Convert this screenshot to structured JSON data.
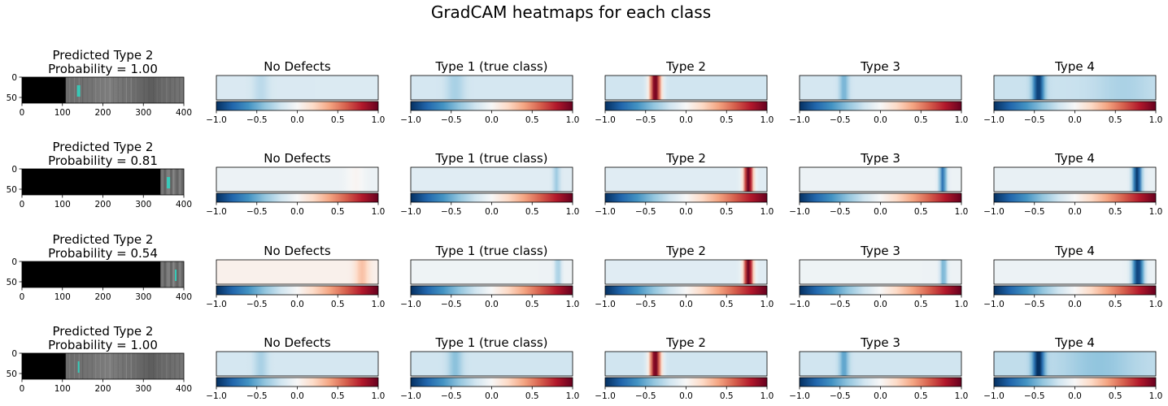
{
  "figure_title": "GradCAM heatmaps for each class",
  "colors": {
    "cmap": [
      "#053061",
      "#2166ac",
      "#4393c3",
      "#92c5de",
      "#d1e5f0",
      "#f7f7f7",
      "#fddbc7",
      "#f4a582",
      "#d6604d",
      "#b2182b",
      "#67001f"
    ],
    "background": "#ffffff",
    "text": "#000000",
    "defect_mark": "#2fd6c2"
  },
  "chart_data": {
    "type": "heatmap",
    "colormap": "RdBu_r",
    "colorbar_ticks": [
      "−1.0",
      "−0.5",
      "0.0",
      "0.5",
      "1.0"
    ],
    "image_axis": {
      "xticks": [
        "0",
        "100",
        "200",
        "300",
        "400"
      ],
      "yticks": [
        "0",
        "50"
      ],
      "xlim": [
        0,
        400
      ],
      "ylim": [
        64,
        0
      ]
    },
    "class_titles": [
      "No Defects",
      "Type 1 (true class)",
      "Type 2",
      "Type 3",
      "Type 4"
    ],
    "rows": [
      {
        "predicted": "Predicted Type 2",
        "probability": "Probability = 1.00",
        "black_until": 108,
        "marks": [
          136,
          140
        ],
        "heatmaps": [
          {
            "base": -0.15,
            "blobs": [
              [
                -0.45,
                0.08,
                -0.12
              ]
            ]
          },
          {
            "base": -0.18,
            "blobs": [
              [
                -0.45,
                0.08,
                -0.15
              ]
            ]
          },
          {
            "base": -0.2,
            "blobs": [
              [
                -0.38,
                0.05,
                1.2
              ]
            ]
          },
          {
            "base": -0.18,
            "blobs": [
              [
                -0.45,
                0.04,
                -0.3
              ]
            ]
          },
          {
            "base": -0.22,
            "blobs": [
              [
                -0.45,
                0.05,
                -0.75
              ],
              [
                0.6,
                0.25,
                -0.1
              ]
            ]
          }
        ]
      },
      {
        "predicted": "Predicted Type 2",
        "probability": "Probability = 0.81",
        "black_until": 342,
        "marks": [
          358,
          362
        ],
        "heatmaps": [
          {
            "base": -0.06,
            "blobs": [
              [
                0.72,
                0.08,
                0.08
              ]
            ]
          },
          {
            "base": -0.12,
            "blobs": [
              [
                0.8,
                0.03,
                -0.25
              ]
            ]
          },
          {
            "base": -0.12,
            "blobs": [
              [
                0.77,
                0.04,
                1.2
              ]
            ]
          },
          {
            "base": -0.06,
            "blobs": [
              [
                0.77,
                0.03,
                -0.7
              ]
            ]
          },
          {
            "base": -0.08,
            "blobs": [
              [
                0.77,
                0.04,
                -0.9
              ]
            ]
          }
        ]
      },
      {
        "predicted": "Predicted Type 2",
        "probability": "Probability = 0.54",
        "black_until": 342,
        "marks": [
          378
        ],
        "heatmaps": [
          {
            "base": 0.05,
            "blobs": [
              [
                0.8,
                0.06,
                0.25
              ]
            ]
          },
          {
            "base": -0.05,
            "blobs": [
              [
                0.82,
                0.03,
                -0.3
              ]
            ]
          },
          {
            "base": -0.12,
            "blobs": [
              [
                0.77,
                0.04,
                1.2
              ]
            ]
          },
          {
            "base": -0.05,
            "blobs": [
              [
                0.78,
                0.03,
                -0.45
              ]
            ]
          },
          {
            "base": -0.06,
            "blobs": [
              [
                0.78,
                0.05,
                -0.9
              ]
            ]
          }
        ]
      },
      {
        "predicted": "Predicted Type 2",
        "probability": "Probability = 1.00",
        "black_until": 108,
        "marks": [
          138
        ],
        "heatmaps": [
          {
            "base": -0.18,
            "blobs": [
              [
                -0.45,
                0.06,
                -0.15
              ]
            ]
          },
          {
            "base": -0.2,
            "blobs": [
              [
                -0.45,
                0.06,
                -0.22
              ]
            ]
          },
          {
            "base": -0.2,
            "blobs": [
              [
                -0.38,
                0.05,
                1.2
              ]
            ]
          },
          {
            "base": -0.2,
            "blobs": [
              [
                -0.45,
                0.04,
                -0.35
              ]
            ]
          },
          {
            "base": -0.25,
            "blobs": [
              [
                -0.45,
                0.05,
                -0.8
              ],
              [
                0.3,
                0.3,
                -0.15
              ]
            ]
          }
        ]
      }
    ]
  }
}
